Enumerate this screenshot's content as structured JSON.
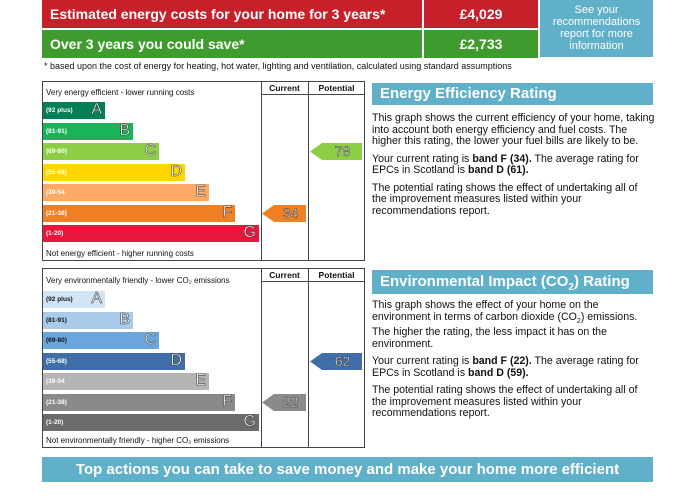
{
  "costs": {
    "rows": [
      {
        "label": "Estimated energy costs for your home for 3 years*",
        "value": "£4,029",
        "color": "#c8202a"
      },
      {
        "label": "Over 3 years you could save*",
        "value": "£2,733",
        "color": "#3f9b2d"
      }
    ],
    "note": "See your recommendations report for more information",
    "footnote": "* based upon the cost of energy for heating, hot water, lighting and ventilation, calculated using standard assumptions"
  },
  "energy_chart": {
    "top_caption": "Very energy efficient - lower running costs",
    "bottom_caption": "Not energy efficient - higher running costs",
    "current_label": "Current",
    "potential_label": "Potential",
    "current": "34",
    "potential": "78",
    "bands": [
      {
        "range": "(92 plus)",
        "letter": "A",
        "color": "#008054"
      },
      {
        "range": "(81-91)",
        "letter": "B",
        "color": "#19b459"
      },
      {
        "range": "(69-80)",
        "letter": "C",
        "color": "#8dce46"
      },
      {
        "range": "(55-68)",
        "letter": "D",
        "color": "#ffd500"
      },
      {
        "range": "(39-54",
        "letter": "E",
        "color": "#fcaa65"
      },
      {
        "range": "(21-38)",
        "letter": "F",
        "color": "#ef8023"
      },
      {
        "range": "(1-20)",
        "letter": "G",
        "color": "#e9153b"
      }
    ]
  },
  "env_chart": {
    "top_caption": "Very environmentally friendly - lower CO₂ emissions",
    "bottom_caption": "Not environmentally friendly - higher CO₂ emissions",
    "current_label": "Current",
    "potential_label": "Potential",
    "current": "22",
    "potential": "62",
    "bands": [
      {
        "range": "(92 plus)",
        "letter": "A",
        "color": "#cfe4f4"
      },
      {
        "range": "(81-91)",
        "letter": "B",
        "color": "#a9cbe9"
      },
      {
        "range": "(69-80)",
        "letter": "C",
        "color": "#6aa6dc"
      },
      {
        "range": "(55-68)",
        "letter": "D",
        "color": "#3f6ea8"
      },
      {
        "range": "(39-54",
        "letter": "E",
        "color": "#b4b4b4"
      },
      {
        "range": "(21-38)",
        "letter": "F",
        "color": "#8a8a8a"
      },
      {
        "range": "(1-20)",
        "letter": "G",
        "color": "#6b6b6b"
      }
    ]
  },
  "energy_panel": {
    "heading": "Energy Efficiency Rating",
    "para1": "This graph shows the current efficiency of your home, taking into account both energy efficiency and fuel costs. The higher this rating, the lower your fuel bills are likely to be.",
    "para2_pre": "Your current rating is ",
    "para2_bold1": "band F (34).",
    "para2_mid": " The average rating for EPCs in Scotland is ",
    "para2_bold2": "band D (61).",
    "para3": "The potential rating shows the effect of undertaking all of the improvement measures listed within your recommendations report."
  },
  "env_panel": {
    "heading_pre": "Environmental Impact (CO",
    "heading_sub": "2",
    "heading_post": ") Rating",
    "para1_pre": "This graph shows the effect of your home on the environment in terms of carbon dioxide (CO",
    "para1_sub": "2",
    "para1_post": ") emissions. The higher the rating, the less impact it has on the environment.",
    "para2_pre": "Your current rating is ",
    "para2_bold1": "band F (22).",
    "para2_mid": " The average rating for EPCs in Scotland is ",
    "para2_bold2": "band D (59).",
    "para3": "The potential rating shows the effect of undertaking all of the improvement measures listed within your recommendations report."
  },
  "actions_heading": "Top actions you can take to save money and make your home more efficient"
}
